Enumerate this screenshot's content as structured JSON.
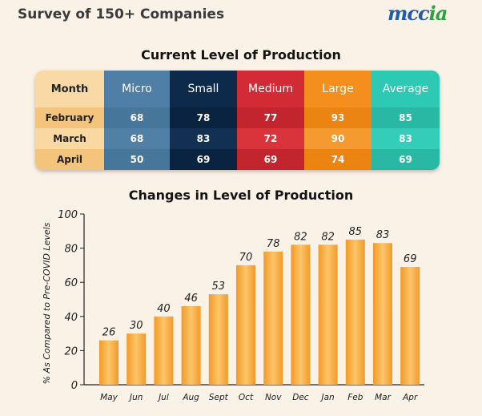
{
  "header": {
    "title": "Survey of 150+ Companies",
    "logo_main": "mcc",
    "logo_accent": "ia"
  },
  "table": {
    "title": "Current Level of Production",
    "columns": [
      {
        "label": "Month",
        "bg": "#f9d9a6",
        "cell_bg": [
          "#f4c47c",
          "#f9d8a2",
          "#f4c47c"
        ],
        "values": [
          "February",
          "March",
          "April"
        ]
      },
      {
        "label": "Micro",
        "bg": "#4f7fa6",
        "cell_bg": [
          "#467699",
          "#5080a6",
          "#467699"
        ],
        "values": [
          "68",
          "68",
          "50"
        ]
      },
      {
        "label": "Small",
        "bg": "#0e2a4b",
        "cell_bg": [
          "#0a2340",
          "#123051",
          "#0a2340"
        ],
        "values": [
          "78",
          "83",
          "69"
        ]
      },
      {
        "label": "Medium",
        "bg": "#d32b35",
        "cell_bg": [
          "#c3252e",
          "#d9333c",
          "#c3252e"
        ],
        "values": [
          "77",
          "72",
          "69"
        ]
      },
      {
        "label": "Large",
        "bg": "#f48e1c",
        "cell_bg": [
          "#ec8412",
          "#f59a2e",
          "#ec8412"
        ],
        "values": [
          "93",
          "90",
          "74"
        ]
      },
      {
        "label": "Average",
        "bg": "#2ec9b4",
        "cell_bg": [
          "#28b8a4",
          "#34cdb9",
          "#28b8a4"
        ],
        "values": [
          "85",
          "83",
          "69"
        ]
      }
    ]
  },
  "chart_data": {
    "type": "bar",
    "title": "Changes in Level of Production",
    "ylabel": "% As Compared to Pre-COVID Levels",
    "xlabel": "",
    "categories": [
      "May",
      "Jun",
      "Jul",
      "Aug",
      "Sept",
      "Oct",
      "Nov",
      "Dec",
      "Jan",
      "Feb",
      "Mar",
      "Apr"
    ],
    "values": [
      26,
      30,
      40,
      46,
      53,
      70,
      78,
      82,
      82,
      85,
      83,
      69
    ],
    "ylim": [
      0,
      100
    ],
    "yticks": [
      "0",
      "20",
      "40",
      "60",
      "80",
      "100"
    ],
    "grid": false,
    "legend": "none",
    "bar_color_light": "#fcc56a",
    "bar_color_dark": "#f39a26"
  }
}
